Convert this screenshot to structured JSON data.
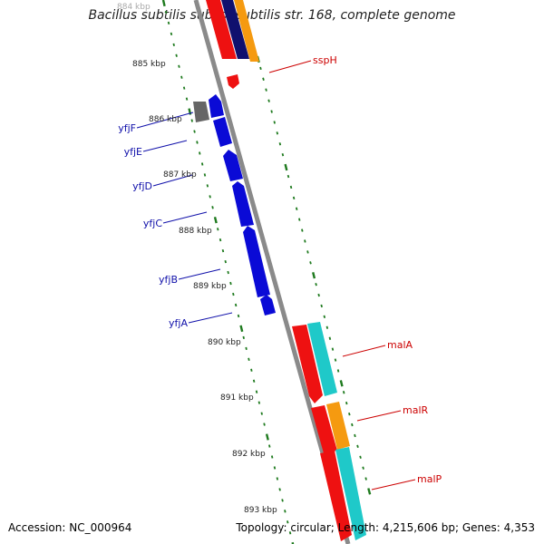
{
  "title": "Bacillus subtilis subsp. subtilis str. 168, complete genome",
  "accession_text": "Accession: NC_000964",
  "summary_text": "Topology: circular; Length: 4,215,606 bp; Genes: 4,353",
  "colors": {
    "backbone": "#8a8a8a",
    "tick": "#1e7a1e",
    "blue_gene": "#0a0ad6",
    "red_gene": "#ee1111",
    "cyan_gene": "#1fc9c9",
    "orange_gene": "#f59a10",
    "navy_gene": "#10106e",
    "gray_gene": "#666666",
    "label_blue": "#1010aa",
    "label_red": "#cc0000"
  },
  "kbp_labels": [
    "884 kbp",
    "885 kbp",
    "886 kbp",
    "887 kbp",
    "888 kbp",
    "889 kbp",
    "890 kbp",
    "891 kbp",
    "892 kbp",
    "893 kbp"
  ],
  "left_genes": [
    {
      "name": "yfjF"
    },
    {
      "name": "yfjE"
    },
    {
      "name": "yfjD"
    },
    {
      "name": "yfjC"
    },
    {
      "name": "yfjB"
    },
    {
      "name": "yfjA"
    }
  ],
  "right_genes": [
    {
      "name": "sspH"
    },
    {
      "name": "malA"
    },
    {
      "name": "malR"
    },
    {
      "name": "malP"
    }
  ]
}
